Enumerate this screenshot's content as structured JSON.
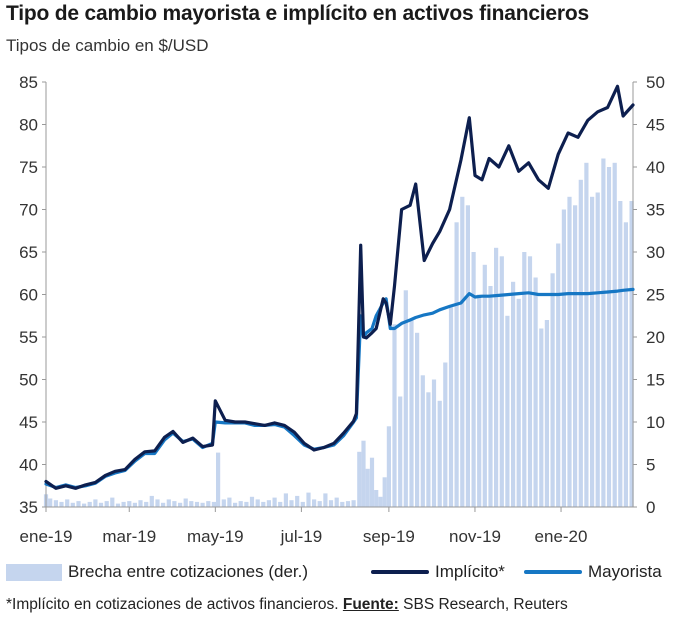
{
  "title": "Tipo de cambio mayorista e implícito en activos financieros",
  "subtitle": "Tipos de cambio en $/USD",
  "footnote": {
    "text": "*Implícito en cotizaciones de activos financieros.",
    "source_label": "Fuente:",
    "source": "SBS Research, Reuters"
  },
  "colors": {
    "implicito": "#0d1f4f",
    "mayorista": "#1677c4",
    "brecha": "#c5d5ee",
    "axis": "#999999"
  },
  "chart_data": {
    "type": "line",
    "x_ticks": [
      "ene-19",
      "mar-19",
      "may-19",
      "jul-19",
      "sep-19",
      "nov-19",
      "ene-20"
    ],
    "x_tick_dates": [
      "2019-01-01",
      "2019-03-01",
      "2019-05-01",
      "2019-07-01",
      "2019-09-01",
      "2019-11-01",
      "2020-01-01"
    ],
    "x_range": [
      "2019-01-01",
      "2020-02-21"
    ],
    "y_left": {
      "range": [
        35,
        85
      ],
      "ticks": [
        35,
        40,
        45,
        50,
        55,
        60,
        65,
        70,
        75,
        80,
        85
      ]
    },
    "y_right": {
      "range": [
        0,
        50
      ],
      "ticks": [
        0,
        5,
        10,
        15,
        20,
        25,
        30,
        35,
        40,
        45,
        50
      ]
    },
    "legend_position": "bottom",
    "legend": [
      {
        "key": "brecha",
        "label": "Brecha entre cotizaciones (der.)"
      },
      {
        "key": "implicito",
        "label": "Implícito*"
      },
      {
        "key": "mayorista",
        "label": "Mayorista"
      }
    ],
    "series": [
      {
        "name": "Implícito*",
        "axis": "left",
        "kind": "line",
        "points": [
          [
            "2019-01-01",
            38.0
          ],
          [
            "2019-01-08",
            37.2
          ],
          [
            "2019-01-15",
            37.5
          ],
          [
            "2019-01-22",
            37.2
          ],
          [
            "2019-01-29",
            37.6
          ],
          [
            "2019-02-05",
            37.9
          ],
          [
            "2019-02-12",
            38.7
          ],
          [
            "2019-02-19",
            39.2
          ],
          [
            "2019-02-26",
            39.4
          ],
          [
            "2019-03-05",
            40.6
          ],
          [
            "2019-03-12",
            41.5
          ],
          [
            "2019-03-19",
            41.6
          ],
          [
            "2019-03-26",
            43.2
          ],
          [
            "2019-04-01",
            43.9
          ],
          [
            "2019-04-08",
            42.6
          ],
          [
            "2019-04-15",
            43.1
          ],
          [
            "2019-04-22",
            42.1
          ],
          [
            "2019-04-29",
            42.3
          ],
          [
            "2019-05-01",
            47.5
          ],
          [
            "2019-05-08",
            45.2
          ],
          [
            "2019-05-15",
            45.0
          ],
          [
            "2019-05-22",
            45.0
          ],
          [
            "2019-05-29",
            44.8
          ],
          [
            "2019-06-05",
            44.6
          ],
          [
            "2019-06-12",
            44.9
          ],
          [
            "2019-06-19",
            44.6
          ],
          [
            "2019-06-26",
            43.8
          ],
          [
            "2019-07-03",
            42.5
          ],
          [
            "2019-07-10",
            41.7
          ],
          [
            "2019-07-17",
            42.0
          ],
          [
            "2019-07-24",
            42.5
          ],
          [
            "2019-07-31",
            43.7
          ],
          [
            "2019-08-07",
            45.1
          ],
          [
            "2019-08-09",
            46.0
          ],
          [
            "2019-08-12",
            65.8
          ],
          [
            "2019-08-14",
            55.0
          ],
          [
            "2019-08-16",
            54.9
          ],
          [
            "2019-08-20",
            55.5
          ],
          [
            "2019-08-23",
            56.0
          ],
          [
            "2019-08-28",
            59.5
          ],
          [
            "2019-08-30",
            59.0
          ],
          [
            "2019-09-02",
            56.5
          ],
          [
            "2019-09-05",
            61.0
          ],
          [
            "2019-09-10",
            70.0
          ],
          [
            "2019-09-16",
            70.5
          ],
          [
            "2019-09-20",
            73.0
          ],
          [
            "2019-09-26",
            64.0
          ],
          [
            "2019-10-02",
            66.0
          ],
          [
            "2019-10-07",
            67.4
          ],
          [
            "2019-10-14",
            70.0
          ],
          [
            "2019-10-22",
            75.8
          ],
          [
            "2019-10-28",
            80.8
          ],
          [
            "2019-11-01",
            74.0
          ],
          [
            "2019-11-06",
            73.5
          ],
          [
            "2019-11-11",
            76.0
          ],
          [
            "2019-11-18",
            75.0
          ],
          [
            "2019-11-25",
            77.5
          ],
          [
            "2019-12-02",
            74.5
          ],
          [
            "2019-12-09",
            75.5
          ],
          [
            "2019-12-16",
            73.5
          ],
          [
            "2019-12-23",
            72.5
          ],
          [
            "2019-12-30",
            76.5
          ],
          [
            "2020-01-06",
            79.0
          ],
          [
            "2020-01-13",
            78.5
          ],
          [
            "2020-01-20",
            80.5
          ],
          [
            "2020-01-27",
            81.5
          ],
          [
            "2020-02-03",
            82.0
          ],
          [
            "2020-02-10",
            84.5
          ],
          [
            "2020-02-14",
            81.0
          ],
          [
            "2020-02-21",
            82.3
          ]
        ]
      },
      {
        "name": "Mayorista",
        "axis": "left",
        "kind": "line",
        "points": [
          [
            "2019-01-01",
            37.7
          ],
          [
            "2019-01-08",
            37.3
          ],
          [
            "2019-01-15",
            37.6
          ],
          [
            "2019-01-22",
            37.3
          ],
          [
            "2019-01-29",
            37.5
          ],
          [
            "2019-02-05",
            37.8
          ],
          [
            "2019-02-12",
            38.6
          ],
          [
            "2019-02-19",
            39.0
          ],
          [
            "2019-02-26",
            39.3
          ],
          [
            "2019-03-05",
            40.4
          ],
          [
            "2019-03-12",
            41.3
          ],
          [
            "2019-03-19",
            41.3
          ],
          [
            "2019-03-26",
            42.9
          ],
          [
            "2019-04-01",
            43.7
          ],
          [
            "2019-04-08",
            42.7
          ],
          [
            "2019-04-15",
            43.0
          ],
          [
            "2019-04-22",
            42.0
          ],
          [
            "2019-04-29",
            42.5
          ],
          [
            "2019-05-01",
            45.0
          ],
          [
            "2019-05-08",
            44.9
          ],
          [
            "2019-05-15",
            44.9
          ],
          [
            "2019-05-22",
            44.9
          ],
          [
            "2019-05-29",
            44.6
          ],
          [
            "2019-06-05",
            44.6
          ],
          [
            "2019-06-12",
            44.7
          ],
          [
            "2019-06-19",
            44.4
          ],
          [
            "2019-06-26",
            43.4
          ],
          [
            "2019-07-03",
            42.3
          ],
          [
            "2019-07-10",
            41.8
          ],
          [
            "2019-07-17",
            42.0
          ],
          [
            "2019-07-24",
            42.3
          ],
          [
            "2019-07-31",
            43.4
          ],
          [
            "2019-08-07",
            45.0
          ],
          [
            "2019-08-09",
            45.5
          ],
          [
            "2019-08-12",
            57.5
          ],
          [
            "2019-08-14",
            55.0
          ],
          [
            "2019-08-16",
            55.5
          ],
          [
            "2019-08-20",
            56.0
          ],
          [
            "2019-08-23",
            57.5
          ],
          [
            "2019-08-28",
            59.0
          ],
          [
            "2019-08-30",
            59.5
          ],
          [
            "2019-09-02",
            56.0
          ],
          [
            "2019-09-05",
            56.0
          ],
          [
            "2019-09-10",
            56.6
          ],
          [
            "2019-09-16",
            57.0
          ],
          [
            "2019-09-20",
            57.3
          ],
          [
            "2019-09-26",
            57.6
          ],
          [
            "2019-10-02",
            57.8
          ],
          [
            "2019-10-07",
            58.2
          ],
          [
            "2019-10-14",
            58.6
          ],
          [
            "2019-10-22",
            59.0
          ],
          [
            "2019-10-28",
            60.1
          ],
          [
            "2019-11-01",
            59.7
          ],
          [
            "2019-11-06",
            59.8
          ],
          [
            "2019-11-11",
            59.8
          ],
          [
            "2019-11-18",
            59.9
          ],
          [
            "2019-11-25",
            60.0
          ],
          [
            "2019-12-02",
            60.1
          ],
          [
            "2019-12-09",
            60.2
          ],
          [
            "2019-12-16",
            60.0
          ],
          [
            "2019-12-23",
            60.0
          ],
          [
            "2019-12-30",
            60.0
          ],
          [
            "2020-01-06",
            60.1
          ],
          [
            "2020-01-13",
            60.1
          ],
          [
            "2020-01-20",
            60.1
          ],
          [
            "2020-01-27",
            60.2
          ],
          [
            "2020-02-03",
            60.3
          ],
          [
            "2020-02-10",
            60.4
          ],
          [
            "2020-02-14",
            60.5
          ],
          [
            "2020-02-21",
            60.6
          ]
        ]
      },
      {
        "name": "Brecha entre cotizaciones (der.)",
        "axis": "right",
        "kind": "bar",
        "points": [
          [
            "2019-01-01",
            1.5
          ],
          [
            "2019-01-04",
            1.0
          ],
          [
            "2019-01-08",
            0.8
          ],
          [
            "2019-01-12",
            0.6
          ],
          [
            "2019-01-16",
            0.9
          ],
          [
            "2019-01-20",
            0.5
          ],
          [
            "2019-01-24",
            0.7
          ],
          [
            "2019-01-28",
            0.4
          ],
          [
            "2019-02-01",
            0.6
          ],
          [
            "2019-02-05",
            0.9
          ],
          [
            "2019-02-09",
            0.5
          ],
          [
            "2019-02-13",
            0.7
          ],
          [
            "2019-02-17",
            1.1
          ],
          [
            "2019-02-21",
            0.4
          ],
          [
            "2019-02-25",
            0.6
          ],
          [
            "2019-03-01",
            0.7
          ],
          [
            "2019-03-05",
            0.5
          ],
          [
            "2019-03-09",
            0.8
          ],
          [
            "2019-03-13",
            0.6
          ],
          [
            "2019-03-17",
            1.3
          ],
          [
            "2019-03-21",
            0.9
          ],
          [
            "2019-03-25",
            0.5
          ],
          [
            "2019-03-29",
            0.9
          ],
          [
            "2019-04-02",
            0.7
          ],
          [
            "2019-04-06",
            0.5
          ],
          [
            "2019-04-10",
            1.0
          ],
          [
            "2019-04-14",
            0.7
          ],
          [
            "2019-04-18",
            0.6
          ],
          [
            "2019-04-22",
            0.5
          ],
          [
            "2019-04-26",
            0.7
          ],
          [
            "2019-04-30",
            0.6
          ],
          [
            "2019-05-03",
            6.4
          ],
          [
            "2019-05-07",
            0.9
          ],
          [
            "2019-05-11",
            1.1
          ],
          [
            "2019-05-15",
            0.5
          ],
          [
            "2019-05-19",
            0.7
          ],
          [
            "2019-05-23",
            0.6
          ],
          [
            "2019-05-27",
            1.2
          ],
          [
            "2019-05-31",
            0.9
          ],
          [
            "2019-06-04",
            0.6
          ],
          [
            "2019-06-08",
            0.8
          ],
          [
            "2019-06-12",
            1.1
          ],
          [
            "2019-06-16",
            0.6
          ],
          [
            "2019-06-20",
            1.6
          ],
          [
            "2019-06-24",
            0.8
          ],
          [
            "2019-06-28",
            1.3
          ],
          [
            "2019-07-02",
            0.6
          ],
          [
            "2019-07-06",
            1.7
          ],
          [
            "2019-07-10",
            0.9
          ],
          [
            "2019-07-14",
            0.7
          ],
          [
            "2019-07-18",
            1.6
          ],
          [
            "2019-07-22",
            0.8
          ],
          [
            "2019-07-26",
            1.1
          ],
          [
            "2019-07-30",
            0.6
          ],
          [
            "2019-08-03",
            0.7
          ],
          [
            "2019-08-07",
            0.8
          ],
          [
            "2019-08-11",
            6.5
          ],
          [
            "2019-08-14",
            7.8
          ],
          [
            "2019-08-17",
            4.5
          ],
          [
            "2019-08-20",
            5.8
          ],
          [
            "2019-08-23",
            2.0
          ],
          [
            "2019-08-26",
            1.2
          ],
          [
            "2019-08-29",
            3.5
          ],
          [
            "2019-09-01",
            9.5
          ],
          [
            "2019-09-05",
            21.5
          ],
          [
            "2019-09-09",
            13.0
          ],
          [
            "2019-09-13",
            25.5
          ],
          [
            "2019-09-17",
            22.0
          ],
          [
            "2019-09-21",
            20.5
          ],
          [
            "2019-09-25",
            15.5
          ],
          [
            "2019-09-29",
            13.5
          ],
          [
            "2019-10-03",
            15.0
          ],
          [
            "2019-10-07",
            12.5
          ],
          [
            "2019-10-11",
            17.0
          ],
          [
            "2019-10-15",
            23.5
          ],
          [
            "2019-10-19",
            33.5
          ],
          [
            "2019-10-23",
            36.5
          ],
          [
            "2019-10-27",
            35.5
          ],
          [
            "2019-10-31",
            30.0
          ],
          [
            "2019-11-04",
            25.0
          ],
          [
            "2019-11-08",
            28.5
          ],
          [
            "2019-11-12",
            26.0
          ],
          [
            "2019-11-16",
            30.5
          ],
          [
            "2019-11-20",
            29.5
          ],
          [
            "2019-11-24",
            22.5
          ],
          [
            "2019-11-28",
            26.5
          ],
          [
            "2019-12-02",
            24.5
          ],
          [
            "2019-12-06",
            30.0
          ],
          [
            "2019-12-10",
            29.5
          ],
          [
            "2019-12-14",
            27.0
          ],
          [
            "2019-12-18",
            21.0
          ],
          [
            "2019-12-22",
            22.0
          ],
          [
            "2019-12-26",
            27.5
          ],
          [
            "2019-12-30",
            31.0
          ],
          [
            "2020-01-03",
            35.0
          ],
          [
            "2020-01-07",
            36.5
          ],
          [
            "2020-01-11",
            35.5
          ],
          [
            "2020-01-15",
            38.5
          ],
          [
            "2020-01-19",
            40.5
          ],
          [
            "2020-01-23",
            36.5
          ],
          [
            "2020-01-27",
            37.0
          ],
          [
            "2020-01-31",
            41.0
          ],
          [
            "2020-02-04",
            40.0
          ],
          [
            "2020-02-08",
            40.5
          ],
          [
            "2020-02-12",
            36.0
          ],
          [
            "2020-02-16",
            33.5
          ],
          [
            "2020-02-20",
            36.0
          ]
        ]
      }
    ]
  }
}
